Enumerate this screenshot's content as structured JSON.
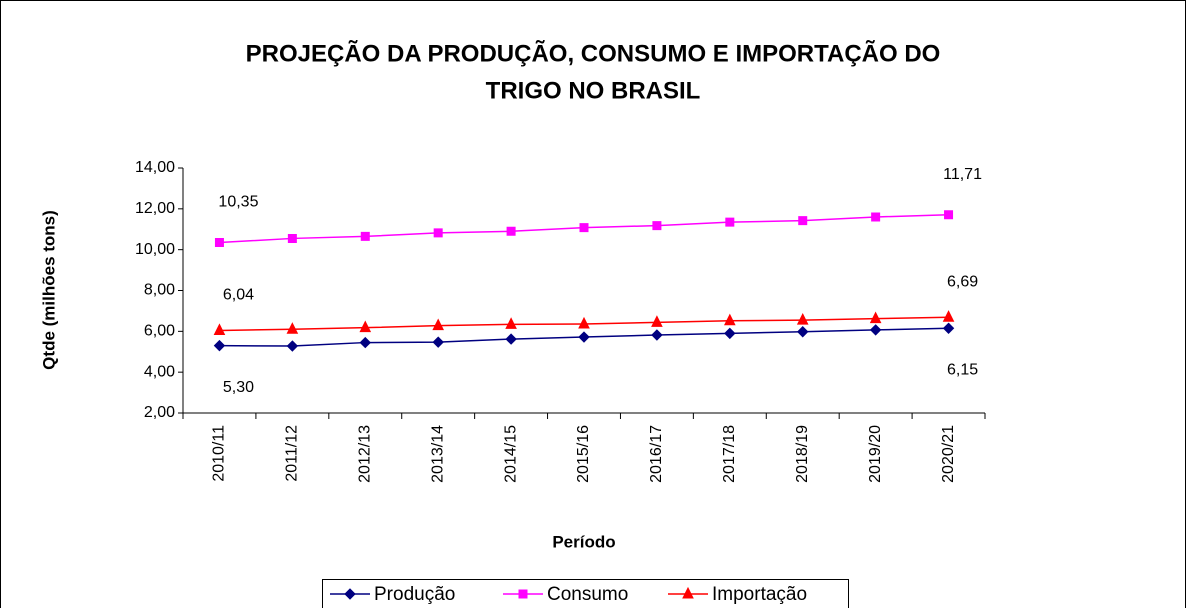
{
  "chart_data": {
    "type": "line",
    "title": [
      "PROJEÇÃO DA PRODUÇÃO, CONSUMO E IMPORTAÇÃO DO",
      "TRIGO NO BRASIL"
    ],
    "y_label": "Qtde (milhões tons)",
    "x_label": "Período",
    "categories": [
      "2010/11",
      "2011/12",
      "2012/13",
      "2013/14",
      "2014/15",
      "2015/16",
      "2016/17",
      "2017/18",
      "2018/19",
      "2019/20",
      "2020/21"
    ],
    "series": [
      {
        "name": "Produção",
        "color": "#000080",
        "marker": "diamond",
        "values": [
          5.3,
          5.28,
          5.45,
          5.47,
          5.62,
          5.72,
          5.82,
          5.9,
          5.98,
          6.07,
          6.15
        ],
        "value_labels": [
          "5,30",
          null,
          null,
          null,
          null,
          null,
          null,
          null,
          null,
          null,
          "6,15"
        ]
      },
      {
        "name": "Consumo",
        "color": "#ff00ff",
        "marker": "square",
        "values": [
          10.35,
          10.55,
          10.65,
          10.82,
          10.9,
          11.08,
          11.18,
          11.35,
          11.42,
          11.6,
          11.71
        ],
        "value_labels": [
          "10,35",
          null,
          null,
          null,
          null,
          null,
          null,
          null,
          null,
          null,
          "11,71"
        ]
      },
      {
        "name": "Importação",
        "color": "#ff0000",
        "marker": "triangle",
        "values": [
          6.04,
          6.1,
          6.18,
          6.28,
          6.34,
          6.36,
          6.44,
          6.52,
          6.55,
          6.62,
          6.69
        ],
        "value_labels": [
          "6,04",
          null,
          null,
          null,
          null,
          null,
          null,
          null,
          null,
          null,
          "6,69"
        ]
      }
    ],
    "ylim": [
      2,
      14
    ],
    "yticks": [
      {
        "value": 2,
        "label": "2,00"
      },
      {
        "value": 4,
        "label": "4,00"
      },
      {
        "value": 6,
        "label": "6,00"
      },
      {
        "value": 8,
        "label": "8,00"
      },
      {
        "value": 10,
        "label": "10,00"
      },
      {
        "value": 12,
        "label": "12,00"
      },
      {
        "value": 14,
        "label": "14,00"
      }
    ],
    "grid": false,
    "legend": "bottom"
  }
}
